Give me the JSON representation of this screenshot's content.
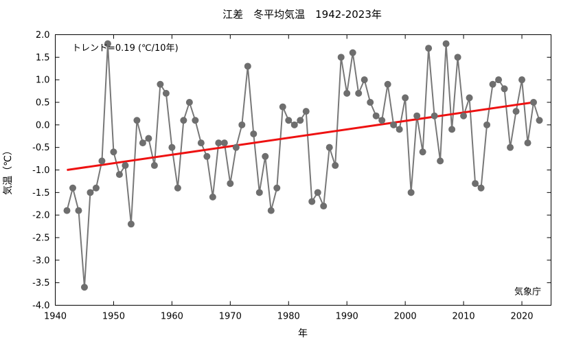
{
  "chart_data": {
    "type": "line",
    "title": "江差　冬平均気温　1942-2023年",
    "xlabel": "年",
    "ylabel": "気温（℃）",
    "xlim": [
      1940,
      2025
    ],
    "ylim": [
      -4.0,
      2.0
    ],
    "xticks": [
      1940,
      1950,
      1960,
      1970,
      1980,
      1990,
      2000,
      2010,
      2020
    ],
    "yticks": [
      "2.0",
      "1.5",
      "1.0",
      "0.5",
      "0.0",
      "-0.5",
      "-1.0",
      "-1.5",
      "-2.0",
      "-2.5",
      "-3.0",
      "-3.5",
      "-4.0"
    ],
    "grid": false,
    "trend_label": "トレンド=0.19 (℃/10年)",
    "source_label": "気象庁",
    "colors": {
      "series": "#777777",
      "marker": "#6e6e6e",
      "trend": "#ee1111",
      "axis": "#000000"
    },
    "trend": {
      "x": [
        1942,
        2022
      ],
      "y": [
        -1.0,
        0.5
      ]
    },
    "series": [
      {
        "x": [
          1942,
          1943,
          1944,
          1945,
          1946,
          1947,
          1948,
          1949,
          1950,
          1951,
          1952,
          1953,
          1954,
          1955,
          1956,
          1957,
          1958,
          1959,
          1960,
          1961,
          1962,
          1963,
          1964,
          1965,
          1966,
          1967,
          1968,
          1969,
          1970,
          1971,
          1972,
          1973,
          1974,
          1975,
          1976,
          1977,
          1978,
          1979,
          1980,
          1981,
          1982,
          1983,
          1984,
          1985,
          1986,
          1987,
          1988,
          1989,
          1990,
          1991,
          1992,
          1993,
          1994,
          1995,
          1996,
          1997,
          1998,
          1999,
          2000,
          2001,
          2002,
          2003,
          2004,
          2005,
          2006,
          2007,
          2008,
          2009,
          2010,
          2011,
          2012,
          2013,
          2014,
          2015,
          2016,
          2017,
          2018,
          2019,
          2020,
          2021,
          2022,
          2023
        ],
        "values": [
          -1.9,
          -1.4,
          -1.9,
          -3.6,
          -1.5,
          -1.4,
          -0.8,
          1.8,
          -0.6,
          -1.1,
          -0.9,
          -2.2,
          0.1,
          -0.4,
          -0.3,
          -0.9,
          0.9,
          0.7,
          -0.5,
          -1.4,
          0.1,
          0.5,
          0.1,
          -0.4,
          -0.7,
          -1.6,
          -0.4,
          -0.4,
          -1.3,
          -0.5,
          0.0,
          1.3,
          -0.2,
          -1.5,
          -0.7,
          -1.9,
          -1.4,
          0.4,
          0.1,
          0.0,
          0.1,
          0.3,
          -1.7,
          -1.5,
          -1.8,
          -0.5,
          -0.9,
          1.5,
          0.7,
          1.6,
          0.7,
          1.0,
          0.5,
          0.2,
          0.1,
          0.9,
          0.0,
          -0.1,
          0.6,
          -1.5,
          0.2,
          -0.6,
          1.7,
          0.2,
          -0.8,
          1.8,
          -0.1,
          1.5,
          0.2,
          0.6,
          -1.3,
          -1.4,
          0.0,
          0.9,
          1.0,
          0.8,
          -0.5,
          0.3,
          1.0,
          -0.4,
          0.5,
          0.1
        ]
      }
    ]
  }
}
